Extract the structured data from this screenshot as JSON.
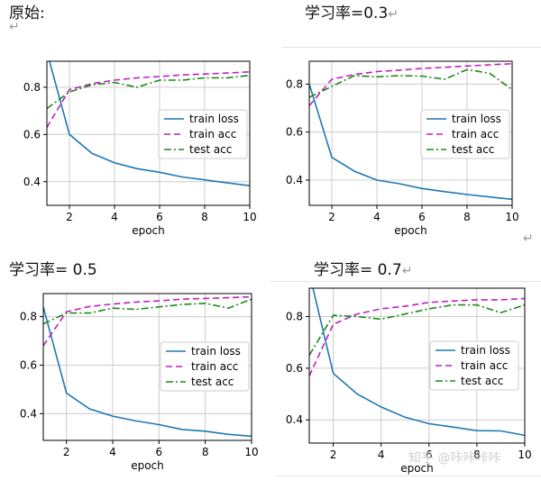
{
  "captions": {
    "p0": "原始:",
    "p1": "学习率=0.3",
    "p2": "学习率= 0.5",
    "p3": "学习率= 0.7"
  },
  "return_mark": "↵",
  "watermark": "知乎 @咔咔咔咔",
  "colors": {
    "train_loss": "#1f77b4",
    "train_acc": "#c020c0",
    "test_acc": "#1a8a1a"
  },
  "chart_data": [
    {
      "type": "line",
      "xlabel": "epoch",
      "ylabel": "",
      "xlim": [
        1,
        10
      ],
      "ylim": [
        0.3,
        0.91
      ],
      "xticks": [
        "2",
        "4",
        "6",
        "8",
        "10"
      ],
      "yticks": [
        "0.4",
        "0.6",
        "0.8"
      ],
      "grid": true,
      "legend_position": "center-right",
      "x": [
        1,
        2,
        3,
        4,
        5,
        6,
        7,
        8,
        9,
        10
      ],
      "series": [
        {
          "name": "train loss",
          "style": "solid",
          "values": [
            0.95,
            0.6,
            0.52,
            0.48,
            0.455,
            0.44,
            0.42,
            0.408,
            0.395,
            0.383
          ]
        },
        {
          "name": "train acc",
          "style": "dashed",
          "values": [
            0.63,
            0.79,
            0.815,
            0.83,
            0.84,
            0.845,
            0.852,
            0.856,
            0.86,
            0.865
          ]
        },
        {
          "name": "test acc",
          "style": "dashdot",
          "values": [
            0.71,
            0.78,
            0.81,
            0.82,
            0.8,
            0.83,
            0.83,
            0.84,
            0.84,
            0.85
          ]
        }
      ]
    },
    {
      "type": "line",
      "xlabel": "epoch",
      "ylabel": "",
      "xlim": [
        1,
        10
      ],
      "ylim": [
        0.295,
        0.895
      ],
      "xticks": [
        "2",
        "4",
        "6",
        "8",
        "10"
      ],
      "yticks": [
        "0.4",
        "0.6",
        "0.8"
      ],
      "grid": true,
      "legend_position": "center-right",
      "x": [
        1,
        2,
        3,
        4,
        5,
        6,
        7,
        8,
        9,
        10
      ],
      "series": [
        {
          "name": "train loss",
          "style": "solid",
          "values": [
            0.8,
            0.495,
            0.437,
            0.4,
            0.385,
            0.365,
            0.352,
            0.34,
            0.33,
            0.32
          ]
        },
        {
          "name": "train acc",
          "style": "dashed",
          "values": [
            0.71,
            0.82,
            0.84,
            0.852,
            0.858,
            0.865,
            0.87,
            0.875,
            0.88,
            0.885
          ]
        },
        {
          "name": "test acc",
          "style": "dashdot",
          "values": [
            0.745,
            0.79,
            0.835,
            0.83,
            0.835,
            0.833,
            0.82,
            0.86,
            0.845,
            0.777
          ]
        }
      ]
    },
    {
      "type": "line",
      "xlabel": "epoch",
      "ylabel": "",
      "xlim": [
        1,
        10
      ],
      "ylim": [
        0.29,
        0.895
      ],
      "xticks": [
        "2",
        "4",
        "6",
        "8",
        "10"
      ],
      "yticks": [
        "0.4",
        "0.6",
        "0.8"
      ],
      "grid": true,
      "legend_position": "center-right",
      "x": [
        1,
        2,
        3,
        4,
        5,
        6,
        7,
        8,
        9,
        10
      ],
      "series": [
        {
          "name": "train loss",
          "style": "solid",
          "values": [
            0.84,
            0.485,
            0.42,
            0.39,
            0.37,
            0.355,
            0.335,
            0.328,
            0.315,
            0.307
          ]
        },
        {
          "name": "train acc",
          "style": "dashed",
          "values": [
            0.68,
            0.82,
            0.842,
            0.852,
            0.86,
            0.865,
            0.872,
            0.875,
            0.878,
            0.882
          ]
        },
        {
          "name": "test acc",
          "style": "dashdot",
          "values": [
            0.77,
            0.815,
            0.815,
            0.835,
            0.83,
            0.84,
            0.85,
            0.855,
            0.835,
            0.872
          ]
        }
      ]
    },
    {
      "type": "line",
      "xlabel": "epoch",
      "ylabel": "",
      "xlim": [
        1,
        10
      ],
      "ylim": [
        0.31,
        0.91
      ],
      "xticks": [
        "2",
        "4",
        "6",
        "8",
        "10"
      ],
      "yticks": [
        "0.4",
        "0.6",
        "0.8"
      ],
      "grid": true,
      "legend_position": "center-right",
      "x": [
        1,
        2,
        3,
        4,
        5,
        6,
        7,
        8,
        9,
        10
      ],
      "series": [
        {
          "name": "train loss",
          "style": "solid",
          "values": [
            0.97,
            0.58,
            0.5,
            0.45,
            0.41,
            0.385,
            0.372,
            0.358,
            0.357,
            0.34
          ]
        },
        {
          "name": "train acc",
          "style": "dashed",
          "values": [
            0.57,
            0.77,
            0.81,
            0.83,
            0.84,
            0.855,
            0.86,
            0.865,
            0.865,
            0.87
          ]
        },
        {
          "name": "test acc",
          "style": "dashdot",
          "values": [
            0.65,
            0.805,
            0.8,
            0.79,
            0.81,
            0.83,
            0.845,
            0.845,
            0.815,
            0.845
          ]
        }
      ]
    }
  ]
}
